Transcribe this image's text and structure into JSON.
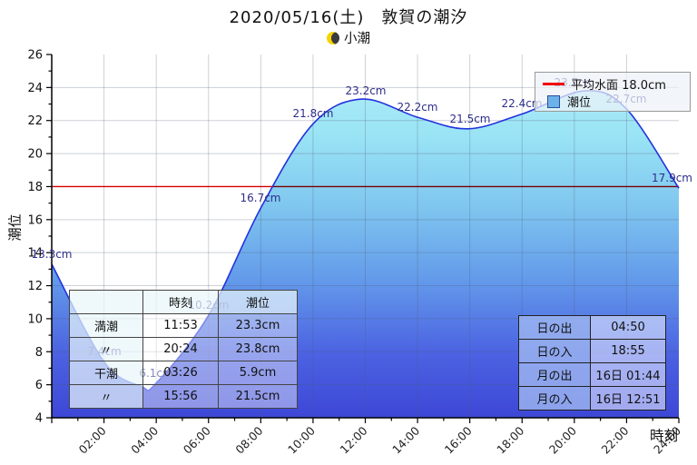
{
  "page": {
    "title": "2020/05/16(土)　敦賀の潮汐",
    "subtitle": "小潮",
    "moon_icon": "last-quarter-moon"
  },
  "axes": {
    "ylabel": "潮位",
    "xlabel": "時刻"
  },
  "legend": {
    "mean_level_label": "平均水面 18.0cm",
    "tide_label": "潮位",
    "line_color": "#ee0000",
    "area_swatch_color": "#6cb2e8"
  },
  "tide_table": {
    "headers": [
      "",
      "時刻",
      "潮位"
    ],
    "rows": [
      [
        "満潮",
        "11:53",
        "23.3cm"
      ],
      [
        "〃",
        "20:24",
        "23.8cm"
      ],
      [
        "干潮",
        "03:26",
        "5.9cm"
      ],
      [
        "〃",
        "15:56",
        "21.5cm"
      ]
    ]
  },
  "sun_moon_table": {
    "rows": [
      [
        "日の出",
        "04:50"
      ],
      [
        "日の入",
        "18:55"
      ],
      [
        "月の出",
        "16日 01:44"
      ],
      [
        "月の入",
        "16日 12:51"
      ]
    ]
  },
  "chart_data": {
    "type": "area",
    "title": "2020/05/16(土)　敦賀の潮汐",
    "xlabel": "時刻",
    "ylabel": "潮位",
    "xlim_hours": [
      0,
      24
    ],
    "ylim": [
      4,
      26
    ],
    "y_major_step": 2,
    "x_tick_step": 2,
    "x_tick_labels": [
      "02:00",
      "04:00",
      "06:00",
      "08:00",
      "10:00",
      "12:00",
      "14:00",
      "16:00",
      "18:00",
      "20:00",
      "22:00",
      "24:00"
    ],
    "mean_sea_level": 18.0,
    "mean_line_color": "#ff0000",
    "line_color": "#2233dd",
    "grid": true,
    "curve_points": [
      [
        0,
        13.3
      ],
      [
        2,
        7.4
      ],
      [
        3.43,
        5.9
      ],
      [
        4,
        6.1
      ],
      [
        6,
        10.2
      ],
      [
        8,
        16.7
      ],
      [
        10,
        21.8
      ],
      [
        11.88,
        23.3
      ],
      [
        14,
        22.2
      ],
      [
        15.93,
        21.5
      ],
      [
        18,
        22.4
      ],
      [
        20.4,
        23.8
      ],
      [
        22,
        22.7
      ],
      [
        24,
        17.9
      ]
    ],
    "point_labels": [
      {
        "hour": 0,
        "value": 13.3,
        "text": "13.3cm"
      },
      {
        "hour": 2,
        "value": 7.4,
        "text": "7.4cm"
      },
      {
        "hour": 4,
        "value": 6.1,
        "text": "6.1cm"
      },
      {
        "hour": 6,
        "value": 10.2,
        "text": "10.2cm"
      },
      {
        "hour": 8,
        "value": 16.7,
        "text": "16.7cm"
      },
      {
        "hour": 10,
        "value": 21.8,
        "text": "21.8cm"
      },
      {
        "hour": 12,
        "value": 23.2,
        "text": "23.2cm"
      },
      {
        "hour": 14,
        "value": 22.2,
        "text": "22.2cm"
      },
      {
        "hour": 16,
        "value": 21.5,
        "text": "21.5cm"
      },
      {
        "hour": 18,
        "value": 22.4,
        "text": "22.4cm"
      },
      {
        "hour": 20,
        "value": 23.7,
        "text": "23.7cm"
      },
      {
        "hour": 22,
        "value": 22.7,
        "text": "22.7cm"
      },
      {
        "hour": 24,
        "value": 17.9,
        "text": "17.9cm"
      }
    ],
    "extremes": [
      {
        "kind": "満潮",
        "time": "11:53",
        "value_cm": 23.3
      },
      {
        "kind": "満潮",
        "time": "20:24",
        "value_cm": 23.8
      },
      {
        "kind": "干潮",
        "time": "03:26",
        "value_cm": 5.9
      },
      {
        "kind": "干潮",
        "time": "15:56",
        "value_cm": 21.5
      }
    ],
    "fill_gradient": [
      [
        "0%",
        "#b6eff8"
      ],
      [
        "22%",
        "#9ae4f5"
      ],
      [
        "42%",
        "#7fc6ef"
      ],
      [
        "62%",
        "#639aea"
      ],
      [
        "82%",
        "#4c63e2"
      ],
      [
        "100%",
        "#3d47d6"
      ]
    ],
    "legend_position": "upper right"
  }
}
